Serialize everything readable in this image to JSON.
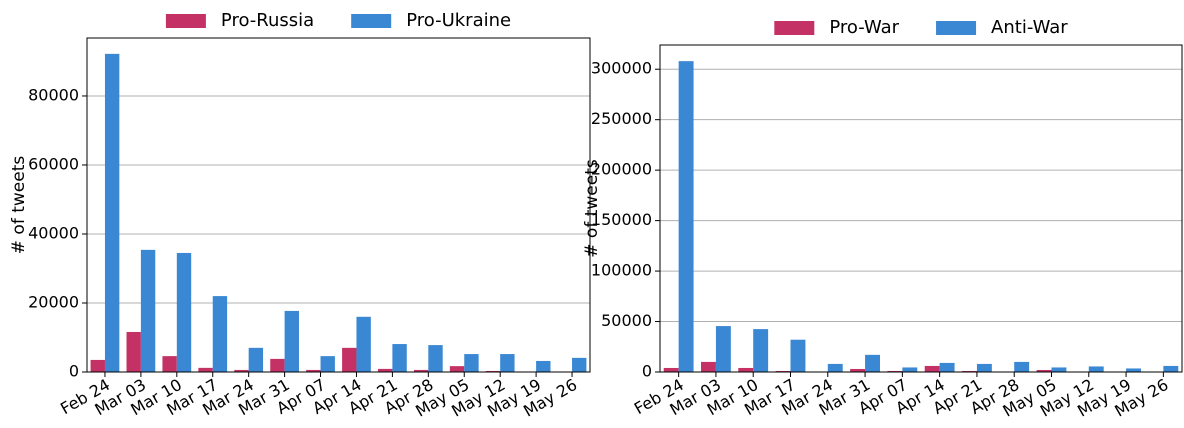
{
  "chart_data": [
    {
      "type": "bar",
      "ylabel": "# of tweets",
      "legend": "top",
      "grid": true,
      "categories": [
        "Feb 24",
        "Mar 03",
        "Mar 10",
        "Mar 17",
        "Mar 24",
        "Mar 31",
        "Apr 07",
        "Apr 14",
        "Apr 21",
        "Apr 28",
        "May 05",
        "May 12",
        "May 19",
        "May 26"
      ],
      "series": [
        {
          "name": "Pro-Russia",
          "color": "#c43265",
          "values": [
            3500,
            11600,
            4600,
            1200,
            600,
            3800,
            600,
            7000,
            900,
            600,
            1700,
            300,
            100,
            100
          ]
        },
        {
          "name": "Pro-Ukraine",
          "color": "#3a87d3",
          "values": [
            92200,
            35400,
            34500,
            22000,
            7000,
            17700,
            4600,
            16000,
            8100,
            7800,
            5200,
            5200,
            3200,
            4100
          ]
        }
      ],
      "ylim": [
        0,
        96800
      ],
      "yticks": [
        0,
        20000,
        40000,
        60000,
        80000
      ]
    },
    {
      "type": "bar",
      "ylabel": "# of tweets",
      "legend": "top",
      "grid": true,
      "categories": [
        "Feb 24",
        "Mar 03",
        "Mar 10",
        "Mar 17",
        "Mar 24",
        "Mar 31",
        "Apr 07",
        "Apr 14",
        "Apr 21",
        "Apr 28",
        "May 05",
        "May 12",
        "May 19",
        "May 26"
      ],
      "series": [
        {
          "name": "Pro-War",
          "color": "#c43265",
          "values": [
            4000,
            10000,
            4000,
            1000,
            300,
            3000,
            1000,
            6000,
            1000,
            300,
            2000,
            300,
            300,
            300
          ]
        },
        {
          "name": "Anti-War",
          "color": "#3a87d3",
          "values": [
            308000,
            45500,
            42500,
            32000,
            8000,
            17000,
            4500,
            9000,
            8000,
            10000,
            4500,
            5500,
            3500,
            6000
          ]
        }
      ],
      "ylim": [
        0,
        324000
      ],
      "yticks": [
        0,
        50000,
        100000,
        150000,
        200000,
        250000,
        300000
      ]
    }
  ]
}
